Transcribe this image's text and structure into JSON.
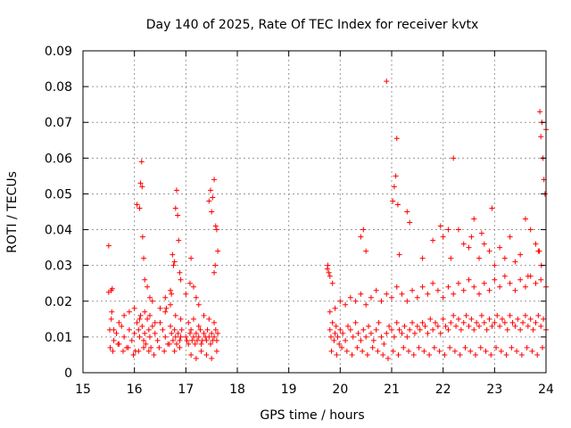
{
  "chart_data": {
    "type": "scatter",
    "title": "Day 140 of 2025, Rate Of TEC Index for receiver kvtx",
    "xlabel": "GPS time / hours",
    "ylabel": "ROTI / TECUs",
    "xlim": [
      15,
      24
    ],
    "ylim": [
      0,
      0.09
    ],
    "x_ticks": [
      "15",
      "16",
      "17",
      "18",
      "19",
      "20",
      "21",
      "22",
      "23",
      "24"
    ],
    "y_ticks": [
      "0",
      "0.01",
      "0.02",
      "0.03",
      "0.04",
      "0.05",
      "0.06",
      "0.07",
      "0.08",
      "0.09"
    ],
    "grid": true,
    "marker": "+",
    "color": "#ff0000",
    "series": [
      {
        "x": [
          15.5,
          15.52,
          15.55,
          15.6,
          15.65,
          15.7,
          15.75,
          15.8,
          15.85,
          15.9,
          15.95,
          16.0,
          16.02,
          16.05,
          16.08,
          16.1,
          16.12,
          16.15,
          16.18,
          16.2,
          16.22,
          16.25,
          16.28,
          16.3,
          16.32,
          16.35,
          16.4,
          16.45,
          16.5,
          16.55,
          16.6,
          16.65,
          16.7,
          16.72,
          16.75,
          16.78,
          16.8,
          16.82,
          16.85,
          16.88,
          16.9,
          16.92,
          15.55,
          15.6,
          15.7,
          15.8,
          15.9,
          16.0,
          16.1,
          16.2,
          16.3,
          16.4,
          16.5,
          16.6,
          16.7,
          16.8,
          16.9,
          15.53,
          15.58,
          15.68,
          15.78,
          15.88,
          15.98,
          16.08,
          16.18,
          16.28,
          16.38,
          16.48,
          16.58,
          16.68,
          16.78,
          16.88,
          15.5,
          15.57,
          15.56,
          16.05,
          16.1,
          16.12,
          16.14,
          16.15,
          16.16,
          16.18,
          16.2,
          16.25,
          16.3,
          16.35,
          16.6,
          16.62,
          16.7,
          16.72,
          16.74,
          16.76,
          16.78,
          16.8,
          16.82,
          16.84,
          16.86,
          16.88,
          16.9,
          17.0,
          17.02,
          17.05,
          17.08,
          17.1,
          17.12,
          17.15,
          17.18,
          17.2,
          17.22,
          17.25,
          17.28,
          17.3,
          17.32,
          17.35,
          17.38,
          17.4,
          17.42,
          17.45,
          17.48,
          17.5,
          17.52,
          17.55,
          17.58,
          17.6,
          17.62,
          17.05,
          17.15,
          17.25,
          17.35,
          17.45,
          17.55,
          17.1,
          17.2,
          17.3,
          17.4,
          17.5,
          17.6,
          17.0,
          17.08,
          17.1,
          17.15,
          17.2,
          17.25,
          17.45,
          17.48,
          17.5,
          17.52,
          17.55,
          17.58,
          17.6,
          17.62,
          17.55,
          17.57,
          19.75,
          19.78,
          19.8,
          19.82,
          19.85,
          19.88,
          19.9,
          19.92,
          19.95,
          19.98,
          20.0,
          20.05,
          20.1,
          20.15,
          20.2,
          20.25,
          20.3,
          20.35,
          20.4,
          20.45,
          20.5,
          20.55,
          20.6,
          20.65,
          20.7,
          20.75,
          20.8,
          20.85,
          20.9,
          20.95,
          21.0,
          21.05,
          21.1,
          21.15,
          21.2,
          21.25,
          21.3,
          21.35,
          21.4,
          21.45,
          21.5,
          21.55,
          21.6,
          21.65,
          21.7,
          21.75,
          21.8,
          21.85,
          21.9,
          21.95,
          22.0,
          22.05,
          22.1,
          22.15,
          22.2,
          22.25,
          22.3,
          22.35,
          22.4,
          22.45,
          22.5,
          22.55,
          22.6,
          22.65,
          22.7,
          22.75,
          22.8,
          22.85,
          22.9,
          22.95,
          23.0,
          23.05,
          23.1,
          23.15,
          23.2,
          23.25,
          23.3,
          23.35,
          23.4,
          23.45,
          23.5,
          23.55,
          23.6,
          23.65,
          23.7,
          23.75,
          23.8,
          23.85,
          23.9,
          23.95,
          24.0,
          19.8,
          19.9,
          20.0,
          20.1,
          20.2,
          20.3,
          20.4,
          20.5,
          20.6,
          20.7,
          20.8,
          20.9,
          21.0,
          21.1,
          21.2,
          21.3,
          21.4,
          21.5,
          21.6,
          21.7,
          21.8,
          21.9,
          22.0,
          22.1,
          22.2,
          22.3,
          22.4,
          22.5,
          22.6,
          22.7,
          22.8,
          22.9,
          23.0,
          23.1,
          23.2,
          23.3,
          23.4,
          23.5,
          23.6,
          23.7,
          23.8,
          23.9,
          24.0,
          19.83,
          19.93,
          20.03,
          20.13,
          20.23,
          20.33,
          20.43,
          20.53,
          20.63,
          20.73,
          20.83,
          20.93,
          21.03,
          21.13,
          21.23,
          21.33,
          21.43,
          21.53,
          21.63,
          21.73,
          21.83,
          21.93,
          22.03,
          22.13,
          22.23,
          22.33,
          22.43,
          22.53,
          22.63,
          22.73,
          22.83,
          22.93,
          23.03,
          23.13,
          23.23,
          23.33,
          23.43,
          23.53,
          23.63,
          23.73,
          23.83,
          23.93,
          19.76,
          19.8,
          19.85,
          20.4,
          20.45,
          20.5,
          20.9,
          21.02,
          21.05,
          21.08,
          21.1,
          21.12,
          21.15,
          21.3,
          21.35,
          21.6,
          21.8,
          21.95,
          22.0,
          22.1,
          22.15,
          22.2,
          22.3,
          22.4,
          22.5,
          22.55,
          22.6,
          22.7,
          22.75,
          22.8,
          22.9,
          22.95,
          23.0,
          23.1,
          23.2,
          23.3,
          23.4,
          23.5,
          23.6,
          23.65,
          23.7,
          23.8,
          23.85,
          23.88,
          23.9,
          23.92,
          23.94,
          23.96,
          23.98,
          24.0,
          23.87,
          23.91
        ],
        "y": [
          0.0355,
          0.012,
          0.023,
          0.009,
          0.011,
          0.008,
          0.013,
          0.01,
          0.007,
          0.012,
          0.009,
          0.011,
          0.006,
          0.014,
          0.012,
          0.01,
          0.016,
          0.013,
          0.009,
          0.011,
          0.008,
          0.015,
          0.012,
          0.01,
          0.007,
          0.013,
          0.011,
          0.009,
          0.014,
          0.012,
          0.01,
          0.008,
          0.013,
          0.011,
          0.009,
          0.012,
          0.01,
          0.008,
          0.011,
          0.009,
          0.01,
          0.012,
          0.015,
          0.012,
          0.014,
          0.016,
          0.017,
          0.018,
          0.015,
          0.017,
          0.016,
          0.014,
          0.018,
          0.017,
          0.019,
          0.016,
          0.015,
          0.007,
          0.006,
          0.008,
          0.006,
          0.007,
          0.005,
          0.006,
          0.007,
          0.006,
          0.005,
          0.007,
          0.006,
          0.008,
          0.006,
          0.007,
          0.0225,
          0.0235,
          0.017,
          0.047,
          0.046,
          0.053,
          0.059,
          0.052,
          0.038,
          0.032,
          0.026,
          0.024,
          0.021,
          0.02,
          0.021,
          0.018,
          0.023,
          0.022,
          0.033,
          0.03,
          0.031,
          0.046,
          0.051,
          0.044,
          0.037,
          0.028,
          0.026,
          0.01,
          0.009,
          0.008,
          0.011,
          0.012,
          0.009,
          0.01,
          0.008,
          0.011,
          0.009,
          0.01,
          0.012,
          0.008,
          0.009,
          0.011,
          0.01,
          0.009,
          0.012,
          0.01,
          0.008,
          0.011,
          0.009,
          0.01,
          0.012,
          0.009,
          0.011,
          0.014,
          0.015,
          0.013,
          0.016,
          0.015,
          0.014,
          0.005,
          0.004,
          0.006,
          0.005,
          0.004,
          0.006,
          0.022,
          0.025,
          0.032,
          0.024,
          0.021,
          0.019,
          0.048,
          0.051,
          0.045,
          0.049,
          0.054,
          0.041,
          0.04,
          0.034,
          0.028,
          0.03,
          0.029,
          0.028,
          0.012,
          0.01,
          0.014,
          0.009,
          0.011,
          0.013,
          0.01,
          0.008,
          0.012,
          0.011,
          0.009,
          0.013,
          0.012,
          0.01,
          0.014,
          0.011,
          0.009,
          0.012,
          0.01,
          0.013,
          0.011,
          0.009,
          0.012,
          0.014,
          0.01,
          0.008,
          0.011,
          0.013,
          0.012,
          0.01,
          0.014,
          0.012,
          0.011,
          0.013,
          0.01,
          0.012,
          0.014,
          0.011,
          0.013,
          0.012,
          0.014,
          0.013,
          0.011,
          0.015,
          0.012,
          0.014,
          0.013,
          0.011,
          0.015,
          0.013,
          0.012,
          0.014,
          0.016,
          0.013,
          0.015,
          0.012,
          0.014,
          0.016,
          0.013,
          0.015,
          0.012,
          0.014,
          0.013,
          0.016,
          0.014,
          0.012,
          0.015,
          0.013,
          0.014,
          0.016,
          0.013,
          0.015,
          0.014,
          0.012,
          0.016,
          0.014,
          0.013,
          0.015,
          0.012,
          0.014,
          0.016,
          0.013,
          0.015,
          0.012,
          0.014,
          0.016,
          0.013,
          0.015,
          0.012,
          0.017,
          0.018,
          0.02,
          0.019,
          0.021,
          0.02,
          0.022,
          0.019,
          0.021,
          0.023,
          0.02,
          0.022,
          0.021,
          0.024,
          0.022,
          0.02,
          0.023,
          0.021,
          0.024,
          0.022,
          0.025,
          0.023,
          0.021,
          0.024,
          0.022,
          0.025,
          0.023,
          0.026,
          0.024,
          0.022,
          0.025,
          0.023,
          0.026,
          0.024,
          0.027,
          0.025,
          0.023,
          0.026,
          0.024,
          0.027,
          0.025,
          0.026,
          0.024,
          0.006,
          0.005,
          0.007,
          0.006,
          0.005,
          0.007,
          0.006,
          0.005,
          0.007,
          0.006,
          0.005,
          0.004,
          0.006,
          0.005,
          0.007,
          0.006,
          0.005,
          0.007,
          0.006,
          0.005,
          0.007,
          0.006,
          0.005,
          0.007,
          0.006,
          0.005,
          0.007,
          0.006,
          0.005,
          0.007,
          0.006,
          0.005,
          0.007,
          0.006,
          0.005,
          0.007,
          0.006,
          0.005,
          0.007,
          0.006,
          0.005,
          0.007,
          0.03,
          0.027,
          0.025,
          0.038,
          0.04,
          0.034,
          0.0815,
          0.048,
          0.052,
          0.055,
          0.0655,
          0.047,
          0.033,
          0.045,
          0.042,
          0.032,
          0.037,
          0.041,
          0.038,
          0.04,
          0.032,
          0.06,
          0.04,
          0.036,
          0.035,
          0.038,
          0.043,
          0.032,
          0.039,
          0.036,
          0.034,
          0.046,
          0.03,
          0.035,
          0.032,
          0.038,
          0.031,
          0.033,
          0.043,
          0.027,
          0.04,
          0.036,
          0.034,
          0.073,
          0.066,
          0.07,
          0.06,
          0.054,
          0.05,
          0.068,
          0.034,
          0.03
        ]
      }
    ]
  }
}
